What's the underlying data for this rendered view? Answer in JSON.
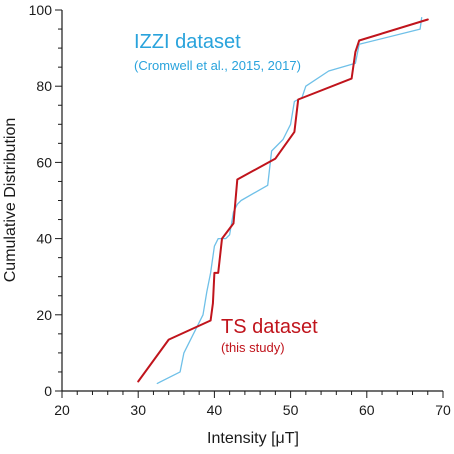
{
  "chart_data": {
    "type": "line",
    "xlabel": "Intensity [μT]",
    "ylabel": "Cumulative Distribution",
    "xlim": [
      20,
      70
    ],
    "ylim": [
      0,
      100
    ],
    "x_ticks": [
      20,
      30,
      40,
      50,
      60,
      70
    ],
    "y_ticks": [
      0,
      20,
      40,
      60,
      80,
      100
    ],
    "grid": false,
    "annotations": [
      {
        "text": "IZZI dataset",
        "size": "large",
        "color": "#29a3dc"
      },
      {
        "text": "(Cromwell et al., 2015, 2017)",
        "size": "small",
        "color": "#29a3dc"
      },
      {
        "text": "TS dataset",
        "size": "large",
        "color": "#c0141c"
      },
      {
        "text": "(this study)",
        "size": "small",
        "color": "#c0141c"
      }
    ],
    "series": [
      {
        "name": "IZZI dataset",
        "color": "#6fc0e8",
        "x": [
          32.5,
          35.5,
          36,
          38.5,
          39,
          39.5,
          40,
          40.5,
          41.5,
          42,
          42.5,
          43,
          43.5,
          47,
          47.5,
          49,
          50,
          50.5,
          51.5,
          52,
          55,
          58.5,
          59,
          67,
          67.2
        ],
        "y": [
          2,
          5,
          10,
          20,
          26,
          31,
          38,
          40,
          40,
          41,
          47,
          49,
          50,
          54,
          63,
          66,
          70,
          76,
          77,
          80,
          84,
          86,
          91,
          95,
          98
        ]
      },
      {
        "name": "TS dataset",
        "color": "#c0141c",
        "x": [
          30,
          34,
          39.5,
          39.8,
          40,
          40.5,
          41,
          42.5,
          43,
          48,
          50.5,
          51,
          58,
          58.5,
          59,
          68
        ],
        "y": [
          2.5,
          13.5,
          18.5,
          23,
          31,
          31,
          40,
          44,
          55.5,
          61,
          68,
          76.5,
          82,
          89,
          92,
          97.5
        ]
      }
    ]
  }
}
